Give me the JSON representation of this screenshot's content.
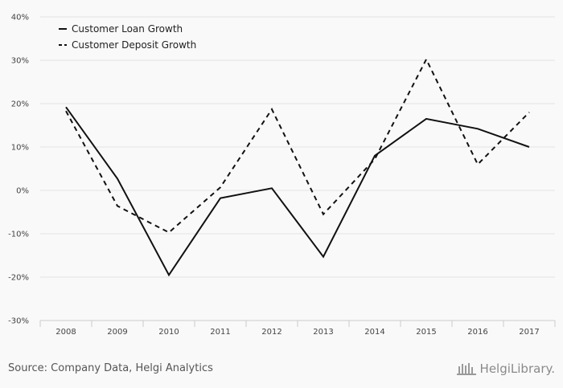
{
  "chart_data": {
    "type": "line",
    "categories": [
      "2008",
      "2009",
      "2010",
      "2011",
      "2012",
      "2013",
      "2014",
      "2015",
      "2016",
      "2017"
    ],
    "series": [
      {
        "name": "Customer Loan Growth",
        "style": "solid",
        "color": "#111111",
        "values": [
          19.2,
          2.7,
          -19.5,
          -1.8,
          0.5,
          -15.3,
          8.0,
          16.5,
          14.2,
          10.0
        ]
      },
      {
        "name": "Customer Deposit Growth",
        "style": "dashed",
        "color": "#111111",
        "values": [
          18.3,
          -3.6,
          -9.7,
          0.7,
          18.7,
          -5.5,
          7.2,
          30.2,
          6.0,
          18.0
        ]
      }
    ],
    "ylim": [
      -30,
      40
    ],
    "yticks": [
      -30,
      -20,
      -10,
      0,
      10,
      20,
      30,
      40
    ],
    "ytick_labels": [
      "-30%",
      "-20%",
      "-10%",
      "0%",
      "10%",
      "20%",
      "30%",
      "40%"
    ],
    "grid": true,
    "legend_position": "top-left"
  },
  "footer": {
    "source": "Source: Company Data, Helgi Analytics"
  },
  "brand": {
    "name": "HelgiLibrary."
  },
  "colors": {
    "background": "#f9f9f9",
    "grid": "#e4e4e4",
    "axis": "#cccccc",
    "line": "#111111"
  }
}
